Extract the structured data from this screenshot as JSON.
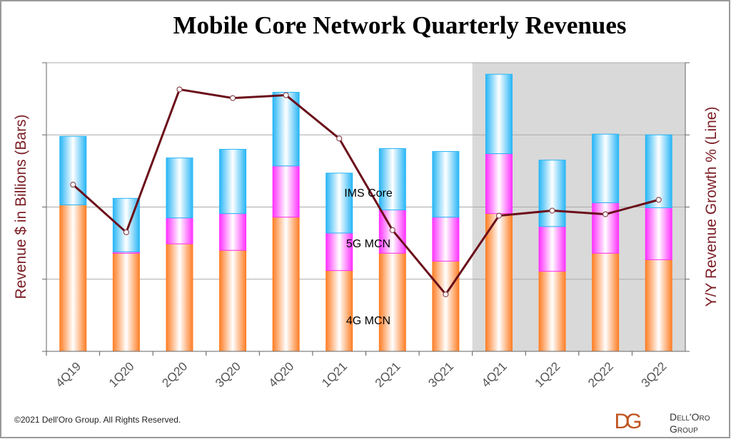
{
  "chart_data": {
    "type": "bar",
    "stacked": true,
    "title": "Mobile Core Network Quarterly Revenues",
    "ylabel": "Revenue $ in Billions (Bars)",
    "y2label": "Y/Y Revenue Growth % (Line)",
    "ylim": [
      0,
      4
    ],
    "y2lim": [
      0,
      4
    ],
    "y_tick_labels_shown": false,
    "grid": true,
    "categories": [
      "4Q19",
      "1Q20",
      "2Q20",
      "3Q20",
      "4Q20",
      "1Q21",
      "2Q21",
      "3Q21",
      "4Q21",
      "1Q22",
      "2Q22",
      "3Q22"
    ],
    "shaded_from_category": "4Q21",
    "series": [
      {
        "name": "4G MCN",
        "color": "#ff7f27",
        "values": [
          2.03,
          1.36,
          1.49,
          1.4,
          1.86,
          1.12,
          1.36,
          1.25,
          1.91,
          1.11,
          1.36,
          1.27
        ]
      },
      {
        "name": "5G MCN",
        "color": "#ff33ff",
        "values": [
          0.0,
          0.02,
          0.36,
          0.51,
          0.71,
          0.52,
          0.6,
          0.61,
          0.83,
          0.62,
          0.7,
          0.72
        ]
      },
      {
        "name": "IMS Core",
        "color": "#29b6f6",
        "values": [
          0.95,
          0.74,
          0.83,
          0.89,
          1.02,
          0.83,
          0.85,
          0.91,
          1.1,
          0.92,
          0.95,
          1.01
        ]
      }
    ],
    "line": {
      "axis": "right",
      "color": "#6b0f1a",
      "values": [
        2.31,
        1.65,
        3.63,
        3.51,
        3.55,
        2.95,
        1.68,
        0.79,
        1.88,
        1.95,
        1.9,
        2.1
      ]
    }
  },
  "footer": {
    "copyright": "©2021 Dell'Oro Group. All Rights Reserved."
  },
  "logo": {
    "text_line1": "Dell'Oro",
    "text_line2": "Group",
    "mark": "DG"
  }
}
